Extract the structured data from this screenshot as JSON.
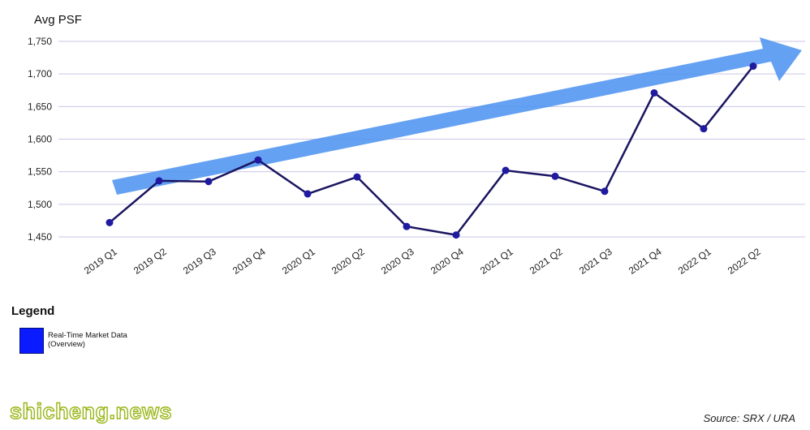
{
  "chart_data": {
    "type": "line",
    "ylabel": "Avg PSF",
    "categories": [
      "2019 Q1",
      "2019 Q2",
      "2019 Q3",
      "2019 Q4",
      "2020 Q1",
      "2020 Q2",
      "2020 Q3",
      "2020 Q4",
      "2021 Q1",
      "2021 Q2",
      "2021 Q3",
      "2021 Q4",
      "2022 Q1",
      "2022 Q2"
    ],
    "series": [
      {
        "values": [
          1472,
          1536,
          1535,
          1568,
          1516,
          1542,
          1466,
          1453,
          1552,
          1543,
          1520,
          1671,
          1616,
          1712
        ]
      }
    ],
    "yticks": [
      "1,750",
      "1,700",
      "1,650",
      "1,600",
      "1,550",
      "1,500",
      "1,450"
    ],
    "ylim": [
      1450,
      1750
    ],
    "grid": true,
    "trend_arrow": true,
    "colors": {
      "line": "#1a1560",
      "marker": "#1f1aa0",
      "arrow": "#4a90f0",
      "grid": "#c9c6e6"
    }
  },
  "legend": {
    "title": "Legend",
    "entries": [
      {
        "label": "Real-Time Market Data (Overview)",
        "color": "#0a1cff"
      }
    ]
  },
  "watermark": "shicheng.news",
  "source": "Source: SRX / URA"
}
